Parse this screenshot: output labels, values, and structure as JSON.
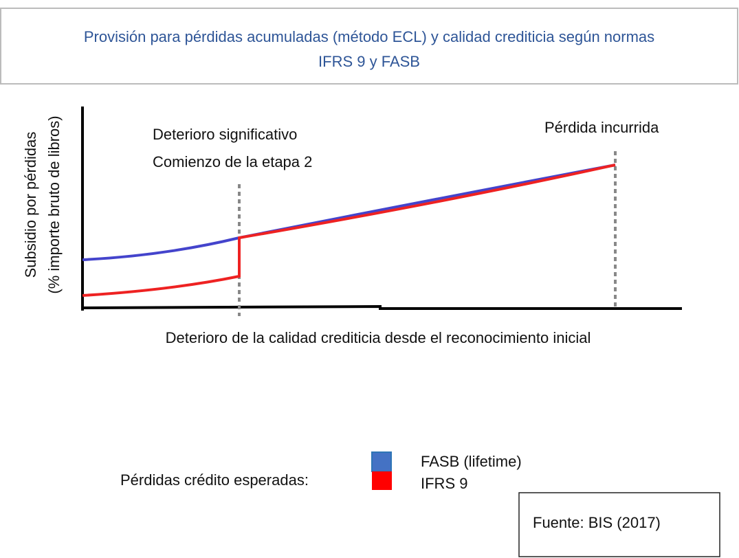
{
  "title": {
    "line1": "Provisión para pérdidas acumuladas (método ECL) y calidad crediticia según normas",
    "line2": "IFRS 9 y FASB"
  },
  "y_axis_label": {
    "line1": "Subsidio por pérdidas",
    "line2": "(% importe bruto de libros)"
  },
  "x_axis_label": "Deterioro de la calidad crediticia desde el reconocimiento inicial",
  "annotations": {
    "stage2_line1": "Deterioro significativo",
    "stage2_line2": "Comienzo de la etapa 2",
    "incurred": "Pérdida incurrida"
  },
  "legend": {
    "heading": "Pérdidas crédito esperadas:",
    "items": [
      "FASB (lifetime)",
      "IFRS 9"
    ]
  },
  "source": "Fuente: BIS (2017)"
}
